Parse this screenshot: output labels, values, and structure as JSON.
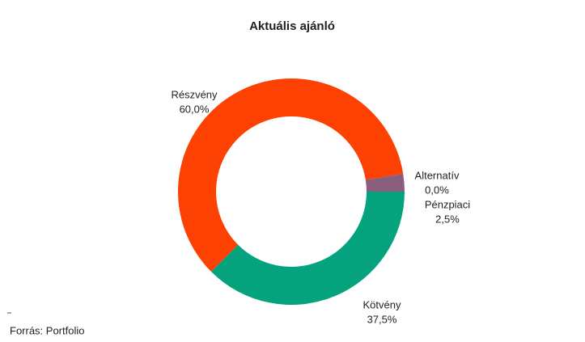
{
  "chart_data": {
    "type": "donut",
    "title": "Aktuális ajánló",
    "categories": [
      "Részvény",
      "Alternatív",
      "Pénzpiaci",
      "Kötvény"
    ],
    "values": [
      60.0,
      0.0,
      2.5,
      37.5
    ],
    "value_labels": [
      "60,0%",
      "0,0%",
      "2,5%",
      "37,5%"
    ],
    "colors": [
      "#fc4103",
      "#b08aa6",
      "#8a5f7e",
      "#04a37e"
    ],
    "source": "Forrás: Portfolio"
  }
}
